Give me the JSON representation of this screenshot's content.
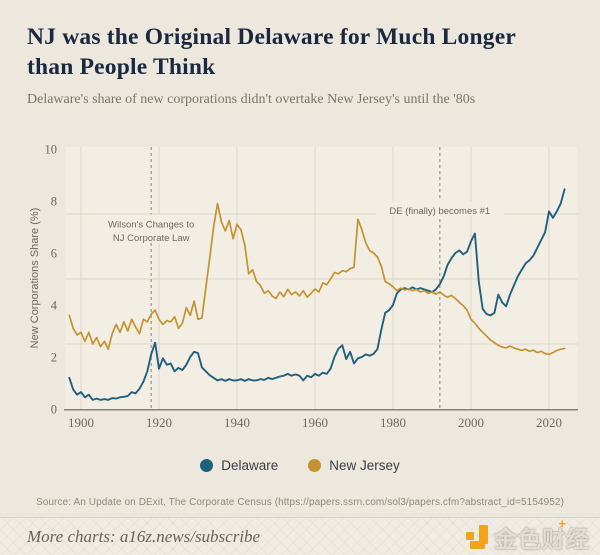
{
  "header": {
    "title_line1": "NJ was the Original Delaware for Much Longer",
    "title_line2": "than People Think",
    "subtitle": "Delaware's share of new corporations didn't overtake New Jersey's until the '80s"
  },
  "source_line": "Source: An Update on DExit, The Corporate Census (https://papers.ssrn.com/sol3/papers.cfm?abstract_id=5154952)",
  "footer": {
    "more_charts": "More charts: a16z.news/subscribe",
    "watermark": "金色财经",
    "watermark_accent": "+"
  },
  "colors": {
    "page_bg": "#EDE8DE",
    "plot_bg": "#F3EEE3",
    "grid": "#DCD5C6",
    "axis": "#8C8476",
    "tick_text": "#6F685C",
    "annotation_text": "#6E675D",
    "dashed_line": "#9C9484",
    "title": "#1A2840",
    "delaware": "#20607F",
    "new_jersey": "#C3932F",
    "accent_orange": "#F2A31D"
  },
  "chart_data": {
    "type": "line",
    "title": "NJ was the Original Delaware for Much Longer than People Think",
    "subtitle": "Delaware's share of new corporations didn't overtake New Jersey's until the '80s",
    "xlabel": "",
    "ylabel": "New Corporations Share (%)",
    "ylim": [
      0,
      10
    ],
    "xlim": [
      1897,
      2025
    ],
    "y_ticks": [
      0,
      2,
      4,
      6,
      8,
      10
    ],
    "x_ticks": [
      1900,
      1920,
      1940,
      1960,
      1980,
      2000,
      2020
    ],
    "gridlines_y": [
      2.5,
      5,
      7.5
    ],
    "grid": true,
    "legend_position": "bottom",
    "annotations": [
      {
        "x": 1918,
        "lines": [
          "Wilson's Changes to",
          "NJ Corporate Law"
        ],
        "text_y": [
          7.1,
          6.58
        ]
      },
      {
        "x": 1992,
        "lines": [
          "DE (finally) becomes #1"
        ],
        "text_y": [
          7.62
        ]
      }
    ],
    "x": [
      1897,
      1898,
      1899,
      1900,
      1901,
      1902,
      1903,
      1904,
      1905,
      1906,
      1907,
      1908,
      1909,
      1910,
      1911,
      1912,
      1913,
      1914,
      1915,
      1916,
      1917,
      1918,
      1919,
      1920,
      1921,
      1922,
      1923,
      1924,
      1925,
      1926,
      1927,
      1928,
      1929,
      1930,
      1931,
      1932,
      1933,
      1934,
      1935,
      1936,
      1937,
      1938,
      1939,
      1940,
      1941,
      1942,
      1943,
      1944,
      1945,
      1946,
      1947,
      1948,
      1949,
      1950,
      1951,
      1952,
      1953,
      1954,
      1955,
      1956,
      1957,
      1958,
      1959,
      1960,
      1961,
      1962,
      1963,
      1964,
      1965,
      1966,
      1967,
      1968,
      1969,
      1970,
      1971,
      1972,
      1973,
      1974,
      1975,
      1976,
      1977,
      1978,
      1979,
      1980,
      1981,
      1982,
      1983,
      1984,
      1985,
      1986,
      1987,
      1988,
      1989,
      1990,
      1991,
      1992,
      1993,
      1994,
      1995,
      1996,
      1997,
      1998,
      1999,
      2000,
      2001,
      2002,
      2003,
      2004,
      2005,
      2006,
      2007,
      2008,
      2009,
      2010,
      2011,
      2012,
      2013,
      2014,
      2015,
      2016,
      2017,
      2018,
      2019,
      2020,
      2021,
      2022,
      2023,
      2024
    ],
    "series": [
      {
        "name": "Delaware",
        "color": "#20607F",
        "values": [
          1.2,
          0.75,
          0.55,
          0.65,
          0.45,
          0.55,
          0.35,
          0.4,
          0.35,
          0.38,
          0.35,
          0.42,
          0.4,
          0.45,
          0.47,
          0.5,
          0.65,
          0.6,
          0.78,
          1.05,
          1.45,
          2.1,
          2.55,
          1.55,
          1.95,
          1.7,
          1.75,
          1.45,
          1.58,
          1.5,
          1.7,
          2.0,
          2.2,
          2.15,
          1.6,
          1.45,
          1.3,
          1.2,
          1.1,
          1.15,
          1.08,
          1.15,
          1.1,
          1.1,
          1.15,
          1.08,
          1.15,
          1.1,
          1.1,
          1.15,
          1.12,
          1.2,
          1.15,
          1.2,
          1.25,
          1.28,
          1.35,
          1.28,
          1.33,
          1.28,
          1.1,
          1.28,
          1.22,
          1.35,
          1.28,
          1.4,
          1.35,
          1.55,
          2.0,
          2.32,
          2.45,
          1.92,
          2.2,
          1.75,
          1.95,
          2.0,
          2.1,
          2.05,
          2.12,
          2.3,
          3.05,
          3.7,
          3.8,
          4.0,
          4.45,
          4.6,
          4.65,
          4.6,
          4.68,
          4.6,
          4.65,
          4.6,
          4.55,
          4.5,
          4.6,
          4.8,
          5.1,
          5.55,
          5.8,
          6.0,
          6.1,
          5.95,
          6.05,
          6.45,
          6.75,
          4.9,
          3.85,
          3.65,
          3.6,
          3.7,
          4.4,
          4.1,
          3.95,
          4.4,
          4.75,
          5.1,
          5.35,
          5.6,
          5.72,
          5.9,
          6.2,
          6.5,
          6.8,
          7.6,
          7.35,
          7.6,
          7.9,
          8.45
        ]
      },
      {
        "name": "New Jersey",
        "color": "#C3932F",
        "values": [
          3.6,
          3.1,
          2.85,
          2.95,
          2.6,
          2.95,
          2.5,
          2.75,
          2.4,
          2.6,
          2.3,
          2.9,
          3.25,
          2.95,
          3.35,
          3.0,
          3.45,
          3.15,
          2.9,
          3.45,
          3.35,
          3.65,
          3.8,
          3.45,
          3.25,
          3.4,
          3.35,
          3.55,
          3.1,
          3.3,
          3.9,
          3.6,
          4.15,
          3.45,
          3.5,
          4.65,
          5.8,
          7.0,
          7.9,
          7.2,
          6.85,
          7.25,
          6.55,
          7.1,
          6.9,
          6.3,
          5.2,
          5.35,
          4.9,
          4.75,
          4.45,
          4.55,
          4.35,
          4.25,
          4.5,
          4.32,
          4.6,
          4.4,
          4.5,
          4.35,
          4.55,
          4.3,
          4.45,
          4.62,
          4.5,
          4.85,
          4.78,
          5.0,
          5.25,
          5.2,
          5.32,
          5.28,
          5.4,
          5.45,
          7.3,
          6.9,
          6.4,
          6.1,
          6.0,
          5.85,
          5.5,
          4.9,
          4.82,
          4.7,
          4.55,
          4.65,
          4.58,
          4.62,
          4.55,
          4.6,
          4.5,
          4.55,
          4.45,
          4.5,
          4.42,
          4.5,
          4.38,
          4.3,
          4.37,
          4.25,
          4.1,
          3.98,
          3.8,
          3.45,
          3.3,
          3.1,
          2.95,
          2.8,
          2.65,
          2.55,
          2.45,
          2.38,
          2.35,
          2.42,
          2.35,
          2.3,
          2.25,
          2.3,
          2.22,
          2.26,
          2.17,
          2.22,
          2.13,
          2.1,
          2.17,
          2.25,
          2.3,
          2.33
        ]
      }
    ]
  }
}
